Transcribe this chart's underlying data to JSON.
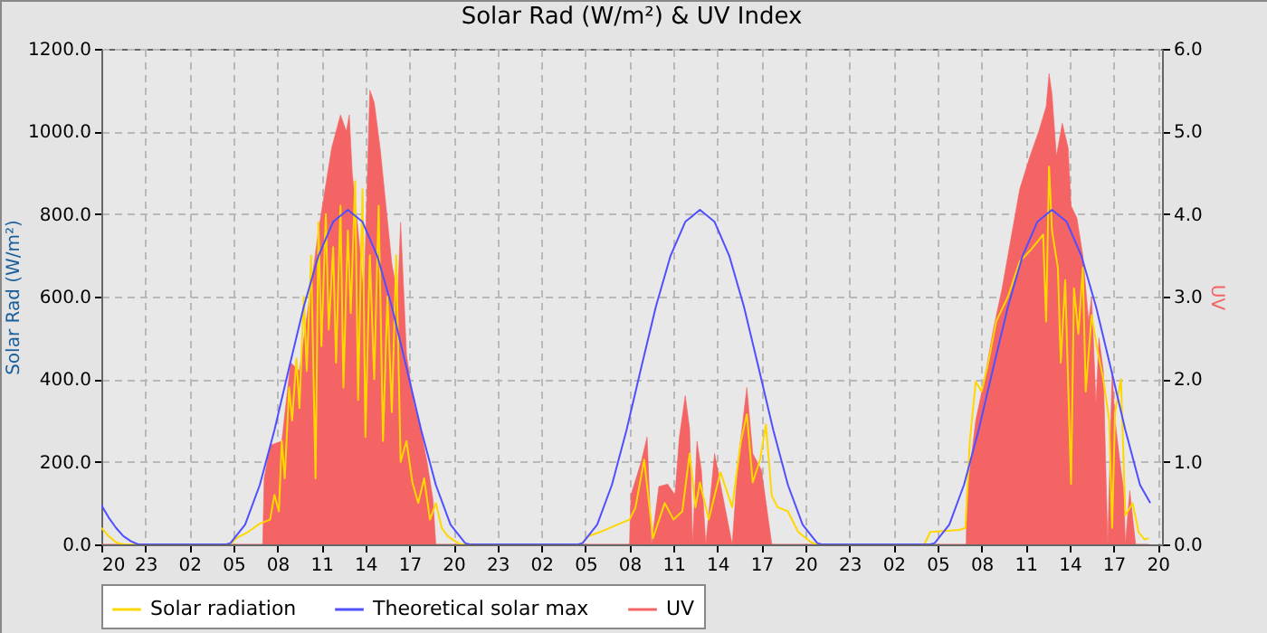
{
  "chart_data": {
    "type": "line",
    "title": "Solar Rad (W/m²) &  UV Index",
    "ylabel": "Solar Rad (W/m²)",
    "y2label": "UV",
    "xlim": [
      "--01-01T20:00",
      "--01-04T20:18"
    ],
    "xticks": [
      {
        "value": "--01-01T20:00",
        "label": "20"
      },
      {
        "value": "--01-01T23:00",
        "label": "23"
      },
      {
        "value": "--01-02T02:00",
        "label": "02"
      },
      {
        "value": "--01-02T05:00",
        "label": "05"
      },
      {
        "value": "--01-02T08:00",
        "label": "08"
      },
      {
        "value": "--01-02T11:00",
        "label": "11"
      },
      {
        "value": "--01-02T14:00",
        "label": "14"
      },
      {
        "value": "--01-02T17:00",
        "label": "17"
      },
      {
        "value": "--01-02T20:00",
        "label": "20"
      },
      {
        "value": "--01-02T23:00",
        "label": "23"
      },
      {
        "value": "--01-03T02:00",
        "label": "02"
      },
      {
        "value": "--01-03T05:00",
        "label": "05"
      },
      {
        "value": "--01-03T08:00",
        "label": "08"
      },
      {
        "value": "--01-03T11:00",
        "label": "11"
      },
      {
        "value": "--01-03T14:00",
        "label": "14"
      },
      {
        "value": "--01-03T17:00",
        "label": "17"
      },
      {
        "value": "--01-03T20:00",
        "label": "20"
      },
      {
        "value": "--01-03T23:00",
        "label": "23"
      },
      {
        "value": "--01-04T02:00",
        "label": "02"
      },
      {
        "value": "--01-04T05:00",
        "label": "05"
      },
      {
        "value": "--01-04T08:00",
        "label": "08"
      },
      {
        "value": "--01-04T11:00",
        "label": "11"
      },
      {
        "value": "--01-04T14:00",
        "label": "14"
      },
      {
        "value": "--01-04T17:00",
        "label": "17"
      },
      {
        "value": "--01-04T20:00",
        "label": "20"
      }
    ],
    "ylim": [
      0,
      1200
    ],
    "yticks": [
      {
        "value": 0,
        "label": "0.0"
      },
      {
        "value": 200,
        "label": "200.0"
      },
      {
        "value": 400,
        "label": "400.0"
      },
      {
        "value": 600,
        "label": "600.0"
      },
      {
        "value": 800,
        "label": "800.0"
      },
      {
        "value": 1000,
        "label": "1000.0"
      },
      {
        "value": 1200,
        "label": "1200.0"
      }
    ],
    "y2lim": [
      0,
      6
    ],
    "y2ticks": [
      {
        "value": 0,
        "label": "0.0"
      },
      {
        "value": 1,
        "label": "1.0"
      },
      {
        "value": 2,
        "label": "2.0"
      },
      {
        "value": 3,
        "label": "3.0"
      },
      {
        "value": 4,
        "label": "4.0"
      },
      {
        "value": 5,
        "label": "5.0"
      },
      {
        "value": 6,
        "label": "6.0"
      }
    ],
    "grid": true,
    "legend": "bottom",
    "line_style": "solid",
    "series": [
      {
        "name": "Solar radiation",
        "color": "#ffd700",
        "type": "line",
        "axis": "y",
        "x": [
          "--01-01T20:00",
          "--01-01T20:30",
          "--01-01T21:00",
          "--01-01T21:30",
          "--01-02T04:48",
          "--01-02T05:12",
          "--01-02T06:00",
          "--01-02T06:48",
          "--01-02T07:30",
          "--01-02T07:48",
          "--01-02T08:06",
          "--01-02T08:18",
          "--01-02T08:30",
          "--01-02T08:48",
          "--01-02T09:00",
          "--01-02T09:18",
          "--01-02T09:30",
          "--01-02T09:48",
          "--01-02T10:00",
          "--01-02T10:18",
          "--01-02T10:36",
          "--01-02T10:48",
          "--01-02T11:00",
          "--01-02T11:18",
          "--01-02T11:30",
          "--01-02T11:48",
          "--01-02T12:00",
          "--01-02T12:18",
          "--01-02T12:30",
          "--01-02T12:48",
          "--01-02T13:00",
          "--01-02T13:18",
          "--01-02T13:30",
          "--01-02T13:48",
          "--01-02T14:00",
          "--01-02T14:18",
          "--01-02T14:36",
          "--01-02T14:54",
          "--01-02T15:12",
          "--01-02T15:30",
          "--01-02T15:48",
          "--01-02T16:06",
          "--01-02T16:24",
          "--01-02T16:48",
          "--01-02T17:12",
          "--01-02T17:36",
          "--01-02T18:00",
          "--01-02T18:24",
          "--01-02T18:48",
          "--01-02T19:12",
          "--01-02T19:36",
          "--01-02T20:00",
          "--01-02T20:30",
          "--01-03T04:42",
          "--01-03T05:12",
          "--01-03T06:00",
          "--01-03T07:00",
          "--01-03T08:00",
          "--01-03T08:24",
          "--01-03T09:00",
          "--01-03T09:36",
          "--01-03T10:24",
          "--01-03T11:00",
          "--01-03T11:36",
          "--01-03T12:06",
          "--01-03T12:30",
          "--01-03T12:48",
          "--01-03T13:24",
          "--01-03T14:12",
          "--01-03T15:00",
          "--01-03T15:36",
          "--01-03T16:00",
          "--01-03T16:24",
          "--01-03T16:54",
          "--01-03T17:18",
          "--01-03T17:42",
          "--01-03T18:06",
          "--01-03T18:48",
          "--01-03T19:30",
          "--01-03T20:18",
          "--01-03T20:42",
          "--01-04T04:06",
          "--01-04T04:30",
          "--01-04T06:30",
          "--01-04T06:54",
          "--01-04T07:12",
          "--01-04T07:36",
          "--01-04T08:00",
          "--01-04T08:24",
          "--01-04T09:00",
          "--01-04T09:48",
          "--01-04T10:36",
          "--01-04T11:24",
          "--01-04T12:12",
          "--01-04T12:24",
          "--01-04T12:36",
          "--01-04T12:48",
          "--01-04T13:12",
          "--01-04T13:24",
          "--01-04T13:42",
          "--01-04T14:06",
          "--01-04T14:18",
          "--01-04T14:36",
          "--01-04T14:54",
          "--01-04T15:06",
          "--01-04T15:30",
          "--01-04T15:54",
          "--01-04T16:18",
          "--01-04T16:42",
          "--01-04T16:54",
          "--01-04T17:06",
          "--01-04T17:30",
          "--01-04T17:48",
          "--01-04T18:18",
          "--01-04T18:42",
          "--01-04T19:06",
          "--01-04T19:24"
        ],
        "values": [
          40,
          20,
          5,
          0,
          0,
          15,
          30,
          50,
          60,
          120,
          80,
          250,
          160,
          380,
          300,
          450,
          330,
          600,
          420,
          700,
          160,
          780,
          480,
          800,
          520,
          720,
          440,
          820,
          380,
          760,
          560,
          880,
          350,
          860,
          260,
          700,
          400,
          820,
          250,
          600,
          320,
          700,
          200,
          250,
          150,
          100,
          160,
          60,
          100,
          40,
          20,
          10,
          0,
          0,
          20,
          30,
          45,
          60,
          88,
          205,
          15,
          100,
          60,
          80,
          220,
          90,
          150,
          60,
          175,
          90,
          250,
          315,
          150,
          205,
          290,
          117,
          90,
          80,
          30,
          7,
          0,
          0,
          30,
          35,
          40,
          250,
          394,
          370,
          430,
          540,
          600,
          685,
          715,
          750,
          540,
          915,
          760,
          670,
          440,
          640,
          146,
          620,
          510,
          670,
          370,
          555,
          470,
          400,
          300,
          40,
          320,
          400,
          70,
          100,
          30,
          12,
          15
        ]
      },
      {
        "name": "Theoretical solar max",
        "color": "#4f4fff",
        "type": "line",
        "axis": "y",
        "x": [
          "--01-01T20:00",
          "--01-01T20:30",
          "--01-01T21:00",
          "--01-01T21:30",
          "--01-01T22:00",
          "--01-01T22:30",
          "--01-02T04:30",
          "--01-02T04:48",
          "--01-02T05:48",
          "--01-02T06:48",
          "--01-02T07:48",
          "--01-02T08:48",
          "--01-02T09:48",
          "--01-02T10:48",
          "--01-02T11:48",
          "--01-02T12:48",
          "--01-02T13:48",
          "--01-02T14:48",
          "--01-02T15:48",
          "--01-02T16:48",
          "--01-02T17:48",
          "--01-02T18:48",
          "--01-02T19:48",
          "--01-02T20:48",
          "--01-02T21:06",
          "--01-03T04:30",
          "--01-03T04:48",
          "--01-03T05:48",
          "--01-03T06:48",
          "--01-03T07:48",
          "--01-03T08:48",
          "--01-03T09:48",
          "--01-03T10:48",
          "--01-03T11:48",
          "--01-03T12:48",
          "--01-03T13:48",
          "--01-03T14:48",
          "--01-03T15:48",
          "--01-03T16:48",
          "--01-03T17:48",
          "--01-03T18:48",
          "--01-03T19:48",
          "--01-03T20:48",
          "--01-03T21:06",
          "--01-04T04:30",
          "--01-04T04:48",
          "--01-04T05:48",
          "--01-04T06:48",
          "--01-04T07:48",
          "--01-04T08:48",
          "--01-04T09:48",
          "--01-04T10:48",
          "--01-04T11:48",
          "--01-04T12:48",
          "--01-04T13:48",
          "--01-04T14:48",
          "--01-04T15:48",
          "--01-04T16:48",
          "--01-04T17:48",
          "--01-04T18:48",
          "--01-04T19:30"
        ],
        "values": [
          95,
          65,
          40,
          20,
          8,
          0,
          0,
          3,
          48,
          144,
          277,
          428,
          576,
          699,
          781,
          810,
          781,
          699,
          576,
          428,
          277,
          144,
          48,
          3,
          0,
          0,
          3,
          48,
          144,
          277,
          428,
          576,
          699,
          781,
          810,
          781,
          699,
          576,
          428,
          277,
          144,
          48,
          3,
          0,
          0,
          3,
          48,
          144,
          277,
          428,
          576,
          699,
          781,
          810,
          781,
          699,
          576,
          428,
          277,
          144,
          100
        ]
      },
      {
        "name": "UV",
        "color": "#f46464",
        "type": "area",
        "axis": "y2",
        "x": [
          "--01-01T20:00",
          "--01-02T07:00",
          "--01-02T07:06",
          "--01-02T07:30",
          "--01-02T08:18",
          "--01-02T08:54",
          "--01-02T09:30",
          "--01-02T10:12",
          "--01-02T10:48",
          "--01-02T11:42",
          "--01-02T12:18",
          "--01-02T12:42",
          "--01-02T12:54",
          "--01-02T13:06",
          "--01-02T13:30",
          "--01-02T13:54",
          "--01-02T14:18",
          "--01-02T14:36",
          "--01-02T15:00",
          "--01-02T15:24",
          "--01-02T15:48",
          "--01-02T16:12",
          "--01-02T16:24",
          "--01-02T16:48",
          "--01-02T17:18",
          "--01-02T17:42",
          "--01-02T18:12",
          "--01-02T18:36",
          "--01-02T18:48",
          "--01-03T08:00",
          "--01-03T08:06",
          "--01-03T08:48",
          "--01-03T09:12",
          "--01-03T09:30",
          "--01-03T10:00",
          "--01-03T10:36",
          "--01-03T11:06",
          "--01-03T11:24",
          "--01-03T11:48",
          "--01-03T12:06",
          "--01-03T12:18",
          "--01-03T12:36",
          "--01-03T12:54",
          "--01-03T13:12",
          "--01-03T13:48",
          "--01-03T14:12",
          "--01-03T15:00",
          "--01-03T15:24",
          "--01-03T16:00",
          "--01-03T16:24",
          "--01-03T17:00",
          "--01-03T17:42",
          "--01-04T06:57",
          "--01-04T07:00",
          "--01-04T07:12",
          "--01-04T07:36",
          "--01-04T08:12",
          "--01-04T08:48",
          "--01-04T09:24",
          "--01-04T10:00",
          "--01-04T10:36",
          "--01-04T11:18",
          "--01-04T11:54",
          "--01-04T12:24",
          "--01-04T12:36",
          "--01-04T12:48",
          "--01-04T13:06",
          "--01-04T13:30",
          "--01-04T13:54",
          "--01-04T14:06",
          "--01-04T14:30",
          "--01-04T14:54",
          "--01-04T15:18",
          "--01-04T15:30",
          "--01-04T15:48",
          "--01-04T16:00",
          "--01-04T16:18",
          "--01-04T16:36",
          "--01-04T16:54",
          "--01-04T17:06",
          "--01-04T17:30",
          "--01-04T17:42",
          "--01-04T17:48",
          "--01-04T18:06",
          "--01-04T18:30",
          "--01-04T19:24"
        ],
        "values": [
          0,
          0,
          0.8,
          1.2,
          1.25,
          2.2,
          2.1,
          3,
          3.8,
          4.8,
          5.2,
          5,
          5.2,
          4.5,
          3.8,
          3,
          5.5,
          5.35,
          4.8,
          4.1,
          3.4,
          3,
          3.9,
          2.3,
          1.7,
          1.45,
          1,
          0.55,
          0,
          0,
          0.6,
          1,
          1.3,
          0,
          0.7,
          0.73,
          0.6,
          1.3,
          1.8,
          1.4,
          0,
          1.25,
          0.9,
          0,
          1.1,
          0.73,
          0,
          1,
          1.9,
          1.1,
          0.9,
          0,
          0,
          0.65,
          0.9,
          1.5,
          2,
          2.6,
          3.1,
          3.7,
          4.3,
          4.7,
          5,
          5.3,
          5.7,
          5.45,
          4.7,
          5.1,
          4.8,
          4.1,
          3.95,
          3.5,
          2.7,
          3,
          1.7,
          2.5,
          2.1,
          0,
          2.1,
          1.5,
          0.9,
          0.65,
          0,
          0.65,
          0,
          0
        ]
      }
    ]
  }
}
